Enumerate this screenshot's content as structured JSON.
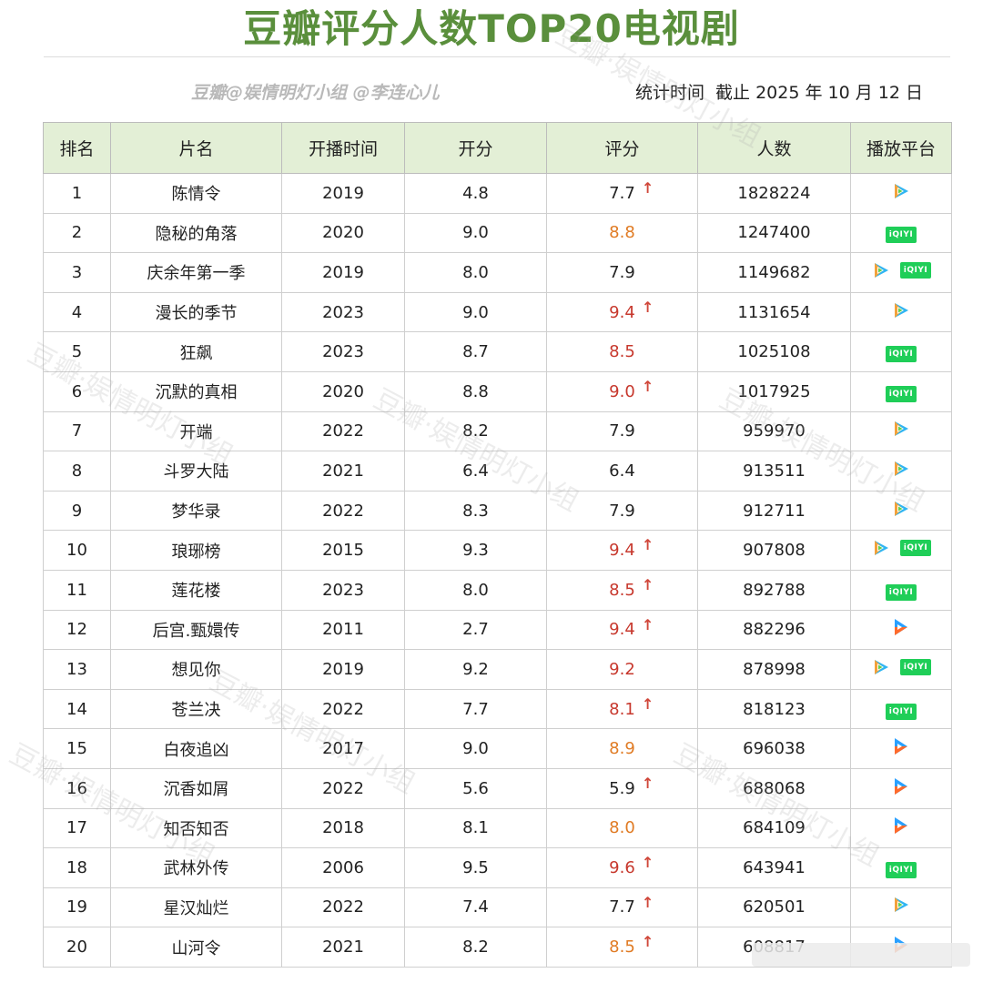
{
  "title": "豆瓣评分人数TOP20电视剧",
  "credit": "豆瓣@娱情明灯小组 @李连心儿",
  "stat_label": "统计时间",
  "stat_value": "截止 2025 年 10 月 12 日",
  "watermark_text": "豆瓣·娱情明灯小组",
  "columns": [
    "排名",
    "片名",
    "开播时间",
    "开分",
    "评分",
    "人数",
    "播放平台"
  ],
  "icon_label_iqiyi": "iQIYI",
  "colors": {
    "title": "#5a8f3c",
    "header_bg": "#e3efd6",
    "score_orange": "#e07b24",
    "score_red": "#c7382d",
    "arrow": "#d0473a"
  },
  "rows": [
    {
      "rank": "1",
      "name": "陈情令",
      "year": "2019",
      "open": "4.8",
      "score": "7.7",
      "tone": "normal",
      "arrow": true,
      "count": "1828224",
      "platforms": [
        "tencent-video-icon"
      ]
    },
    {
      "rank": "2",
      "name": "隐秘的角落",
      "year": "2020",
      "open": "9.0",
      "score": "8.8",
      "tone": "orange",
      "arrow": false,
      "count": "1247400",
      "platforms": [
        "iqiyi-icon"
      ]
    },
    {
      "rank": "3",
      "name": "庆余年第一季",
      "year": "2019",
      "open": "8.0",
      "score": "7.9",
      "tone": "normal",
      "arrow": false,
      "count": "1149682",
      "platforms": [
        "tencent-video-icon",
        "iqiyi-icon"
      ]
    },
    {
      "rank": "4",
      "name": "漫长的季节",
      "year": "2023",
      "open": "9.0",
      "score": "9.4",
      "tone": "red",
      "arrow": true,
      "count": "1131654",
      "platforms": [
        "tencent-video-icon"
      ]
    },
    {
      "rank": "5",
      "name": "狂飙",
      "year": "2023",
      "open": "8.7",
      "score": "8.5",
      "tone": "red",
      "arrow": false,
      "count": "1025108",
      "platforms": [
        "iqiyi-icon"
      ]
    },
    {
      "rank": "6",
      "name": "沉默的真相",
      "year": "2020",
      "open": "8.8",
      "score": "9.0",
      "tone": "red",
      "arrow": true,
      "count": "1017925",
      "platforms": [
        "iqiyi-icon"
      ]
    },
    {
      "rank": "7",
      "name": "开端",
      "year": "2022",
      "open": "8.2",
      "score": "7.9",
      "tone": "normal",
      "arrow": false,
      "count": "959970",
      "platforms": [
        "tencent-video-icon"
      ]
    },
    {
      "rank": "8",
      "name": "斗罗大陆",
      "year": "2021",
      "open": "6.4",
      "score": "6.4",
      "tone": "normal",
      "arrow": false,
      "count": "913511",
      "platforms": [
        "tencent-video-icon"
      ]
    },
    {
      "rank": "9",
      "name": "梦华录",
      "year": "2022",
      "open": "8.3",
      "score": "7.9",
      "tone": "normal",
      "arrow": false,
      "count": "912711",
      "platforms": [
        "tencent-video-icon"
      ]
    },
    {
      "rank": "10",
      "name": "琅琊榜",
      "year": "2015",
      "open": "9.3",
      "score": "9.4",
      "tone": "red",
      "arrow": true,
      "count": "907808",
      "platforms": [
        "tencent-video-icon",
        "iqiyi-icon"
      ]
    },
    {
      "rank": "11",
      "name": "莲花楼",
      "year": "2023",
      "open": "8.0",
      "score": "8.5",
      "tone": "red",
      "arrow": true,
      "count": "892788",
      "platforms": [
        "iqiyi-icon"
      ]
    },
    {
      "rank": "12",
      "name": "后宫.甄嬛传",
      "year": "2011",
      "open": "2.7",
      "score": "9.4",
      "tone": "red",
      "arrow": true,
      "count": "882296",
      "platforms": [
        "youku-icon"
      ]
    },
    {
      "rank": "13",
      "name": "想见你",
      "year": "2019",
      "open": "9.2",
      "score": "9.2",
      "tone": "red",
      "arrow": false,
      "count": "878998",
      "platforms": [
        "tencent-video-icon",
        "iqiyi-icon"
      ]
    },
    {
      "rank": "14",
      "name": "苍兰决",
      "year": "2022",
      "open": "7.7",
      "score": "8.1",
      "tone": "red",
      "arrow": true,
      "count": "818123",
      "platforms": [
        "iqiyi-icon"
      ]
    },
    {
      "rank": "15",
      "name": "白夜追凶",
      "year": "2017",
      "open": "9.0",
      "score": "8.9",
      "tone": "orange",
      "arrow": false,
      "count": "696038",
      "platforms": [
        "youku-icon"
      ]
    },
    {
      "rank": "16",
      "name": "沉香如屑",
      "year": "2022",
      "open": "5.6",
      "score": "5.9",
      "tone": "normal",
      "arrow": true,
      "count": "688068",
      "platforms": [
        "youku-icon"
      ]
    },
    {
      "rank": "17",
      "name": "知否知否",
      "year": "2018",
      "open": "8.1",
      "score": "8.0",
      "tone": "orange",
      "arrow": false,
      "count": "684109",
      "platforms": [
        "youku-icon"
      ]
    },
    {
      "rank": "18",
      "name": "武林外传",
      "year": "2006",
      "open": "9.5",
      "score": "9.6",
      "tone": "red",
      "arrow": true,
      "count": "643941",
      "platforms": [
        "iqiyi-icon"
      ]
    },
    {
      "rank": "19",
      "name": "星汉灿烂",
      "year": "2022",
      "open": "7.4",
      "score": "7.7",
      "tone": "normal",
      "arrow": true,
      "count": "620501",
      "platforms": [
        "tencent-video-icon"
      ]
    },
    {
      "rank": "20",
      "name": "山河令",
      "year": "2021",
      "open": "8.2",
      "score": "8.5",
      "tone": "orange",
      "arrow": true,
      "count": "608817",
      "platforms": [
        "youku-icon"
      ]
    }
  ]
}
